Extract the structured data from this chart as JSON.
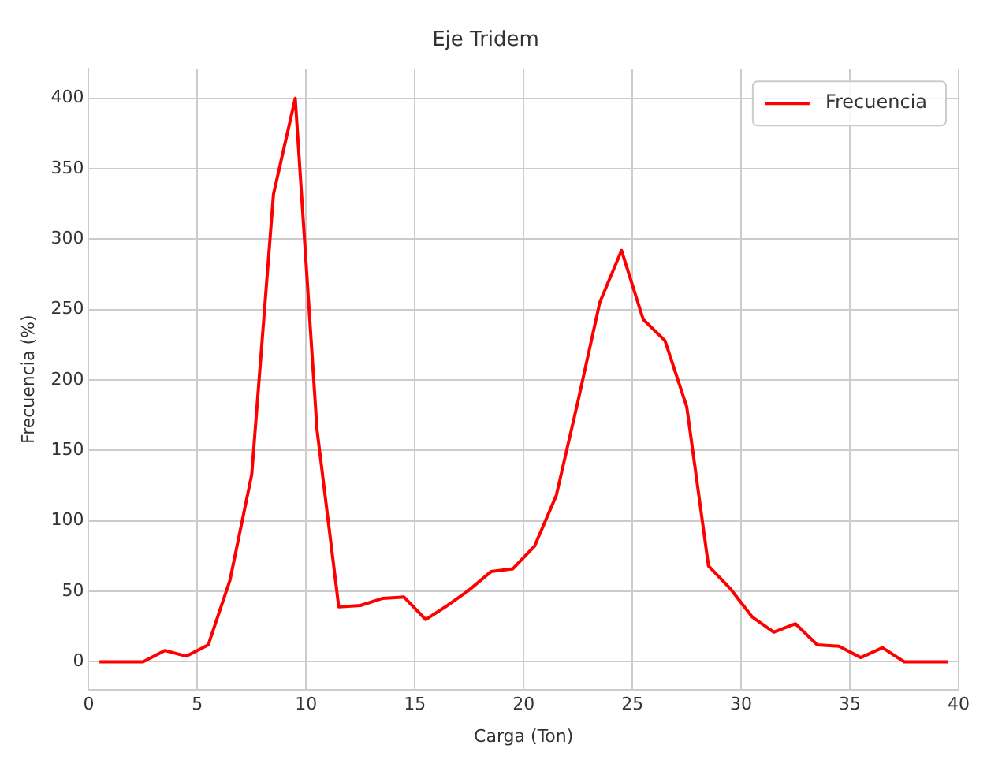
{
  "chart_data": {
    "type": "line",
    "title": "Eje Tridem",
    "xlabel": "Carga (Ton)",
    "ylabel": "Frecuencia (%)",
    "x": [
      0.5,
      1.5,
      2.5,
      3.5,
      4.5,
      5.5,
      6.5,
      7.5,
      8.5,
      9.5,
      10.5,
      11.5,
      12.5,
      13.5,
      14.5,
      15.5,
      16.5,
      17.5,
      18.5,
      19.5,
      20.5,
      21.5,
      22.5,
      23.5,
      24.5,
      25.5,
      26.5,
      27.5,
      28.5,
      29.5,
      30.5,
      31.5,
      32.5,
      33.5,
      34.5,
      35.5,
      36.5,
      37.5,
      38.5,
      39.5
    ],
    "series": [
      {
        "name": "Frecuencia",
        "color": "#ff0000",
        "values": [
          0,
          0,
          0,
          8,
          4,
          12,
          58,
          133,
          332,
          400,
          165,
          39,
          40,
          45,
          46,
          30,
          40,
          51,
          64,
          66,
          82,
          118,
          185,
          255,
          292,
          243,
          228,
          181,
          68,
          52,
          32,
          21,
          27,
          12,
          11,
          3,
          10,
          0,
          0,
          0
        ]
      }
    ],
    "xlim": [
      0,
      40
    ],
    "xticks": [
      0,
      5,
      10,
      15,
      20,
      25,
      30,
      35,
      40
    ],
    "ylim": [
      -20,
      421
    ],
    "yticks": [
      0,
      50,
      100,
      150,
      200,
      250,
      300,
      350,
      400
    ],
    "grid": true,
    "legend": "top right",
    "marker": "none",
    "line_style": "solid"
  }
}
